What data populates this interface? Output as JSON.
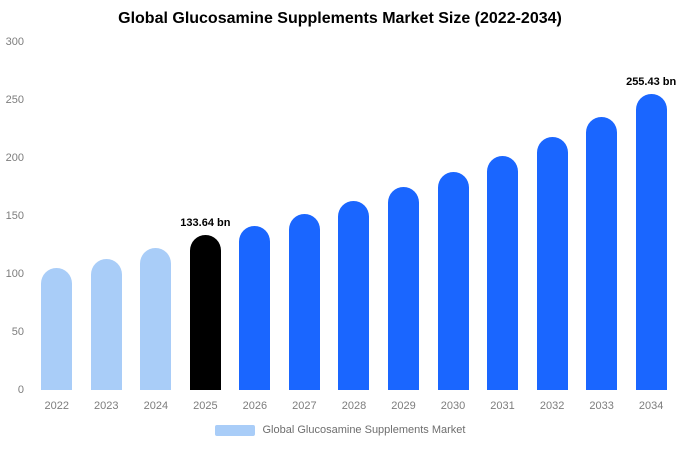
{
  "chart_data": {
    "type": "bar",
    "title": "Global Glucosamine Supplements Market Size (2022-2034)",
    "xlabel": "",
    "ylabel": "",
    "ylim": [
      0,
      300
    ],
    "yticks": [
      0,
      50,
      100,
      150,
      200,
      250,
      300
    ],
    "grid": false,
    "legend_position": "bottom",
    "categories": [
      "2022",
      "2023",
      "2024",
      "2025",
      "2026",
      "2027",
      "2028",
      "2029",
      "2030",
      "2031",
      "2032",
      "2033",
      "2034"
    ],
    "values": [
      105,
      113,
      122,
      133.64,
      141,
      152,
      163,
      175,
      188,
      202,
      218,
      235,
      255.43
    ],
    "bar_colors": [
      "#a9cdf8",
      "#a9cdf8",
      "#a9cdf8",
      "#000000",
      "#1a66ff",
      "#1a66ff",
      "#1a66ff",
      "#1a66ff",
      "#1a66ff",
      "#1a66ff",
      "#1a66ff",
      "#1a66ff",
      "#1a66ff"
    ],
    "annotations": [
      {
        "category": "2025",
        "text": "133.64 bn"
      },
      {
        "category": "2034",
        "text": "255.43 bn"
      }
    ],
    "legend": {
      "label": "Global Glucosamine Supplements Market",
      "swatch_color": "#a9cdf8"
    }
  },
  "colors": {
    "title": "#000000",
    "axis_text": "#7d7d7d",
    "legend_text": "#6e6e6e",
    "background": "#ffffff"
  }
}
